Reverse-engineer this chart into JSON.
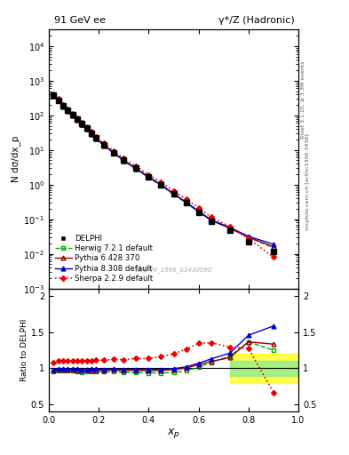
{
  "title_left": "91 GeV ee",
  "title_right": "γ*/Z (Hadronic)",
  "ylabel_main": "N dσ/dx_p",
  "ylabel_ratio": "Ratio to DELPHI",
  "xlabel": "x_p",
  "right_label_top": "Rivet 3.1.10, ≥ 3.3M events",
  "right_label_mid": "mcplots.cern.ch [arXiv:1306.3436]",
  "watermark": "DELPHI_1996_S3430090",
  "xp": [
    0.019,
    0.038,
    0.057,
    0.076,
    0.095,
    0.114,
    0.133,
    0.152,
    0.171,
    0.19,
    0.22,
    0.26,
    0.3,
    0.35,
    0.4,
    0.45,
    0.5,
    0.55,
    0.6,
    0.65,
    0.725,
    0.8,
    0.9
  ],
  "delphi_y": [
    380,
    272,
    185,
    138,
    103,
    77,
    57,
    42,
    30,
    22,
    14.0,
    8.5,
    5.05,
    2.95,
    1.7,
    1.0,
    0.55,
    0.305,
    0.16,
    0.085,
    0.048,
    0.022,
    0.012
  ],
  "delphi_yerr": [
    18,
    13,
    8,
    6,
    5,
    3.8,
    2.8,
    2.0,
    1.4,
    1.0,
    0.65,
    0.4,
    0.25,
    0.15,
    0.09,
    0.055,
    0.03,
    0.018,
    0.01,
    0.006,
    0.0032,
    0.0018,
    0.001
  ],
  "herwig_y": [
    362,
    263,
    179,
    133,
    100,
    74,
    54,
    40,
    28.5,
    21.0,
    13.3,
    8.1,
    4.75,
    2.78,
    1.59,
    0.935,
    0.518,
    0.295,
    0.162,
    0.092,
    0.056,
    0.03,
    0.015
  ],
  "pythia6_y": [
    368,
    267,
    182,
    135,
    101,
    75,
    55,
    41,
    29.2,
    21.4,
    13.6,
    8.3,
    4.88,
    2.87,
    1.64,
    0.97,
    0.54,
    0.306,
    0.168,
    0.093,
    0.055,
    0.03,
    0.016
  ],
  "pythia8_y": [
    372,
    270,
    184,
    137,
    102,
    76,
    55.8,
    41.3,
    29.7,
    21.8,
    13.8,
    8.42,
    4.97,
    2.91,
    1.67,
    0.985,
    0.547,
    0.311,
    0.171,
    0.096,
    0.058,
    0.032,
    0.019
  ],
  "sherpa_y": [
    410,
    300,
    203,
    152,
    114,
    85,
    63,
    46.5,
    33.2,
    24.4,
    15.6,
    9.55,
    5.65,
    3.35,
    1.93,
    1.16,
    0.66,
    0.385,
    0.215,
    0.115,
    0.062,
    0.028,
    0.008
  ],
  "ratio_herwig": [
    0.953,
    0.967,
    0.968,
    0.964,
    0.971,
    0.961,
    0.947,
    0.952,
    0.95,
    0.955,
    0.95,
    0.953,
    0.94,
    0.942,
    0.935,
    0.935,
    0.942,
    0.967,
    1.013,
    1.082,
    1.167,
    1.364,
    1.25
  ],
  "ratio_pythia6": [
    0.968,
    0.981,
    0.984,
    0.978,
    0.981,
    0.974,
    0.965,
    0.976,
    0.973,
    0.973,
    0.971,
    0.976,
    0.966,
    0.973,
    0.965,
    0.97,
    0.982,
    1.003,
    1.05,
    1.094,
    1.146,
    1.364,
    1.333
  ],
  "ratio_pythia8": [
    0.979,
    0.993,
    0.995,
    0.993,
    0.99,
    0.987,
    0.979,
    0.983,
    0.99,
    0.991,
    0.986,
    0.991,
    0.984,
    0.986,
    0.982,
    0.985,
    0.995,
    1.02,
    1.069,
    1.129,
    1.208,
    1.455,
    1.583
  ],
  "ratio_sherpa": [
    1.079,
    1.103,
    1.097,
    1.101,
    1.107,
    1.104,
    1.105,
    1.107,
    1.107,
    1.109,
    1.114,
    1.124,
    1.119,
    1.136,
    1.135,
    1.16,
    1.2,
    1.262,
    1.344,
    1.353,
    1.292,
    1.273,
    0.667
  ],
  "band_xstart": 0.725,
  "band_green_ylow": 0.9,
  "band_green_yhigh": 1.1,
  "band_yellow_ylow": 0.8,
  "band_yellow_yhigh": 1.2,
  "color_delphi": "#000000",
  "color_herwig": "#00aa00",
  "color_pythia6": "#990000",
  "color_pythia8": "#0000cc",
  "color_sherpa": "#ee0000",
  "ylim_main": [
    0.001,
    30000.0
  ],
  "ylim_ratio": [
    0.4,
    2.1
  ],
  "xlim": [
    0.0,
    1.0
  ],
  "yticks_ratio": [
    0.5,
    1.0,
    1.5,
    2.0
  ],
  "ytick_labels_ratio": [
    "0.5",
    "1",
    "1.5",
    "2"
  ]
}
